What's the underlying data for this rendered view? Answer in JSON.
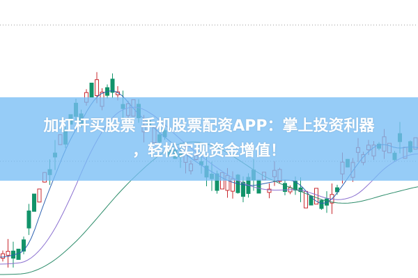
{
  "article": {
    "title_line1": "加杠杆买股票 手机股票配资APP：掌上投资利器",
    "title_line2": "，轻松实现资金增值！"
  },
  "colors": {
    "up": "#c8282e",
    "down": "#12936a",
    "ma_short": "#2a5fb0",
    "ma_mid": "#8a6fd0",
    "ma_long": "#2c8c6a",
    "banner": "#78bef5"
  }
}
